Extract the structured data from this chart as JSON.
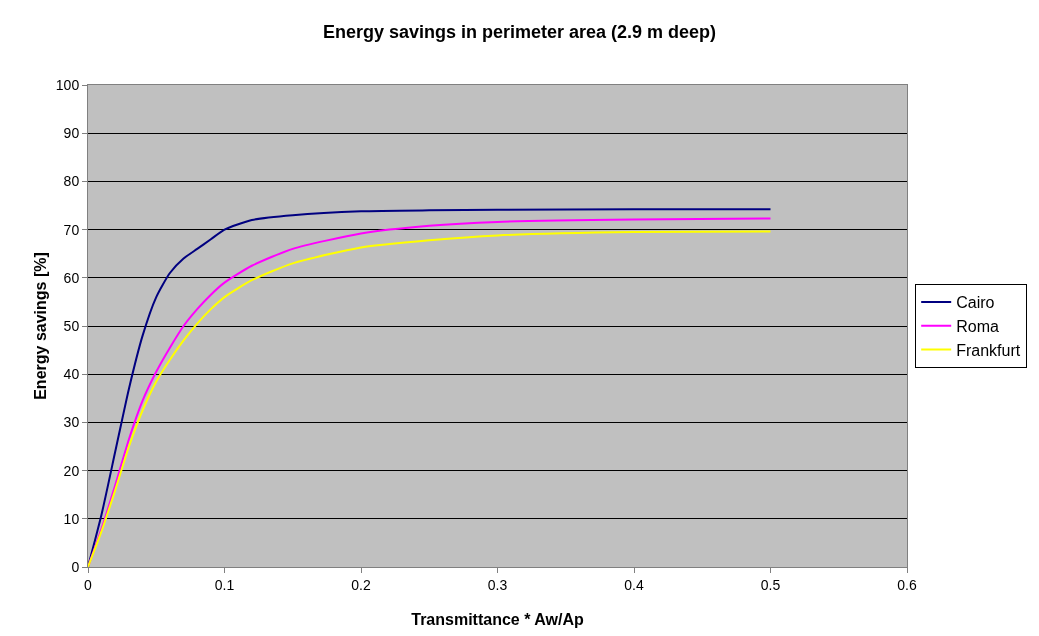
{
  "chart_data": {
    "type": "line",
    "title": "Energy savings in perimeter area (2.9 m deep)",
    "xlabel": "Transmittance * Aw/Ap",
    "ylabel": "Energy savings [%]",
    "x": [
      0,
      0.01,
      0.02,
      0.03,
      0.04,
      0.05,
      0.06,
      0.07,
      0.08,
      0.09,
      0.1,
      0.12,
      0.15,
      0.2,
      0.25,
      0.3,
      0.4,
      0.5
    ],
    "series": [
      {
        "name": "Cairo",
        "color": "#000080",
        "values": [
          0,
          11,
          24,
          37,
          48,
          56,
          61,
          64,
          66,
          68,
          70,
          72,
          73,
          73.8,
          74,
          74.1,
          74.2,
          74.2
        ]
      },
      {
        "name": "Roma",
        "color": "#ff00ff",
        "values": [
          0,
          8,
          17,
          26.5,
          34.5,
          40.5,
          45.5,
          50,
          53.5,
          56.5,
          59,
          62.5,
          66,
          69.2,
          70.8,
          71.6,
          72.1,
          72.3
        ]
      },
      {
        "name": "Frankfurt",
        "color": "#ffff00",
        "values": [
          0,
          7.5,
          16,
          25,
          32.5,
          38.5,
          43,
          47,
          50.5,
          53.5,
          56,
          59.5,
          63,
          66.3,
          67.8,
          68.8,
          69.5,
          69.6
        ]
      }
    ],
    "xlim": [
      0,
      0.6
    ],
    "xticks": [
      0,
      0.1,
      0.2,
      0.3,
      0.4,
      0.5,
      0.6
    ],
    "ylim": [
      0,
      100
    ],
    "yticks": [
      0,
      10,
      20,
      30,
      40,
      50,
      60,
      70,
      80,
      90,
      100
    ],
    "grid": "y",
    "legend": "right",
    "marker": "none",
    "line_style": "solid"
  }
}
